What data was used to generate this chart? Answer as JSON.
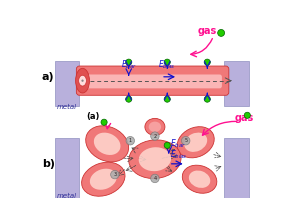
{
  "bg_color": "#ffffff",
  "panel_a_label": "a)",
  "panel_b_label": "b)",
  "metal_color": "#b8b0dc",
  "metal_edge": "#9090c0",
  "metal_label": "metal",
  "tube_outer_color": "#f07878",
  "tube_mid_color": "#f8a0a0",
  "tube_light_color": "#ffd0d0",
  "tube_end_color": "#e05050",
  "gas_label": "gas",
  "gas_color": "#ff1090",
  "blue_color": "#1010cc",
  "green_color": "#22cc00",
  "green_edge": "#006600",
  "electron_color": "#aaaaaa",
  "electron_edge": "#777777",
  "sub_label_a": "(a)",
  "poly_outer": "#f07878",
  "poly_mid": "#f8a8a8",
  "poly_light": "#ffd8d0",
  "poly_edge": "#cc3333",
  "arrow_gray": "#444444"
}
